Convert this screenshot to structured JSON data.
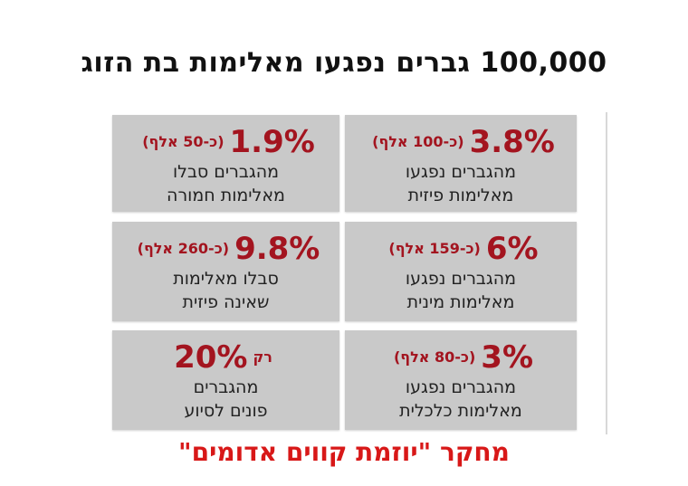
{
  "headline": "100,000 גברים נפגעו מאלימות בת הזוג",
  "cards": [
    {
      "percent": "3.8%",
      "approx": "(כ-100 אלף)",
      "line1": "מהגברים נפגעו",
      "line2": "מאלימות פיזית"
    },
    {
      "percent": "1.9%",
      "approx": "(כ-50 אלף)",
      "line1": "מהגברים סבלו",
      "line2": "מאלימות חמורה"
    },
    {
      "percent": "6%",
      "approx": "(כ-159 אלף)",
      "line1": "מהגברים נפגעו",
      "line2": "מאלימות מינית"
    },
    {
      "percent": "9.8%",
      "approx": "(כ-260 אלף)",
      "line1": "סבלו מאלימות",
      "line2": "שאינה פיזית"
    },
    {
      "percent": "3%",
      "approx": "(כ-80 אלף)",
      "line1": "מהגברים נפגעו",
      "line2": "מאלימות כלכלית"
    },
    {
      "prefix": "רק",
      "percent": "20%",
      "line1": "מהגברים",
      "line2": "פונים לסיוע"
    }
  ],
  "footer": "מחקר \"יוזמת קווים אדומים\"",
  "colors": {
    "card_background": "#c9c9c9",
    "stat_red": "#a3141f",
    "footer_red": "#d81818",
    "text_dark": "#222222"
  }
}
